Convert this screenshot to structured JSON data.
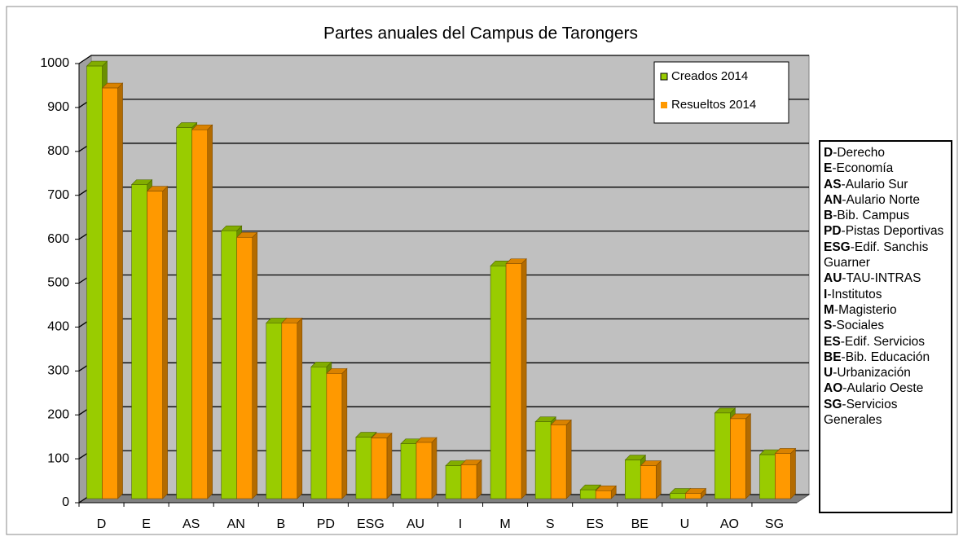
{
  "chart_data": {
    "type": "bar3d",
    "title": "Partes anuales del Campus de Tarongers",
    "categories": [
      "D",
      "E",
      "AS",
      "AN",
      "B",
      "PD",
      "ESG",
      "AU",
      "I",
      "M",
      "S",
      "ES",
      "BE",
      "U",
      "AO",
      "SG"
    ],
    "series": [
      {
        "name": "Creados 2014",
        "color": "#99cc00",
        "values": [
          985,
          715,
          845,
          610,
          400,
          300,
          140,
          125,
          75,
          530,
          175,
          20,
          88,
          12,
          195,
          100
        ]
      },
      {
        "name": "Resueltos 2014",
        "color": "#ff9900",
        "values": [
          935,
          700,
          840,
          595,
          400,
          285,
          138,
          128,
          77,
          535,
          168,
          18,
          75,
          12,
          182,
          103
        ]
      }
    ],
    "ylim": [
      0,
      1000
    ],
    "yticks": [
      0,
      100,
      200,
      300,
      400,
      500,
      600,
      700,
      800,
      900,
      1000
    ],
    "grid": true,
    "legend": "top-right",
    "abbreviations": [
      {
        "code": "D",
        "text": "-Derecho"
      },
      {
        "code": "E",
        "text": "-Economía"
      },
      {
        "code": "AS",
        "text": "-Aulario Sur"
      },
      {
        "code": "AN",
        "text": "-Aulario Norte"
      },
      {
        "code": "B",
        "text": "-Bib. Campus"
      },
      {
        "code": "PD",
        "text": "-Pistas Deportivas"
      },
      {
        "code": "ESG",
        "text": "-Edif. Sanchis Guarner"
      },
      {
        "code": "AU",
        "text": "-TAU-INTRAS"
      },
      {
        "code": "I",
        "text": "-Institutos"
      },
      {
        "code": "M",
        "text": "-Magisterio"
      },
      {
        "code": "S",
        "text": "-Sociales"
      },
      {
        "code": "ES",
        "text": "-Edif. Servicios"
      },
      {
        "code": "BE",
        "text": "-Bib. Educación"
      },
      {
        "code": "U",
        "text": "-Urbanización"
      },
      {
        "code": "AO",
        "text": "-Aulario Oeste"
      },
      {
        "code": "SG",
        "text": "-Servicios Generales"
      }
    ]
  }
}
